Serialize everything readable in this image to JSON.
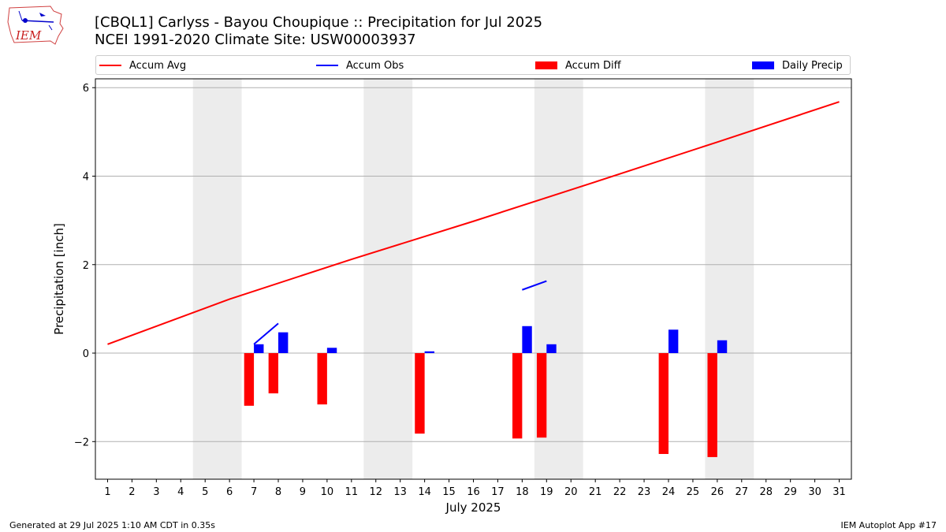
{
  "title_line1": "[CBQL1] Carlyss - Bayou Choupique :: Precipitation for Jul 2025",
  "title_line2": "NCEI 1991-2020 Climate Site: USW00003937",
  "logo_text": "IEM",
  "footer_left": "Generated at 29 Jul 2025 1:10 AM CDT in 0.35s",
  "footer_right": "IEM Autoplot App #17",
  "legend": [
    {
      "label": "Accum Avg",
      "color": "#ff0000",
      "kind": "line"
    },
    {
      "label": "Accum Obs",
      "color": "#0000ff",
      "kind": "line"
    },
    {
      "label": "Accum Diff",
      "color": "#ff0000",
      "kind": "box"
    },
    {
      "label": "Daily Precip",
      "color": "#0000ff",
      "kind": "box"
    }
  ],
  "chart_data": {
    "type": "bar",
    "title": "[CBQL1] Carlyss - Bayou Choupique :: Precipitation for Jul 2025",
    "xlabel": "July 2025",
    "ylabel": "Precipitation [inch]",
    "ylim": [
      -2.85,
      6.2
    ],
    "xlim": [
      0.5,
      31.5
    ],
    "yticks": [
      -2,
      0,
      2,
      4,
      6
    ],
    "ytick_labels": [
      "−2",
      "0",
      "2",
      "4",
      "6"
    ],
    "x": [
      1,
      2,
      3,
      4,
      5,
      6,
      7,
      8,
      9,
      10,
      11,
      12,
      13,
      14,
      15,
      16,
      17,
      18,
      19,
      20,
      21,
      22,
      23,
      24,
      25,
      26,
      27,
      28,
      29,
      30,
      31
    ],
    "weekend_bands": [
      [
        4.5,
        6.5
      ],
      [
        11.5,
        13.5
      ],
      [
        18.5,
        20.5
      ],
      [
        25.5,
        27.5
      ]
    ],
    "grid": "horizontal",
    "series": [
      {
        "name": "Accum Avg",
        "type": "line",
        "color": "#ff0000",
        "x": [
          1,
          6,
          11,
          16,
          21,
          26,
          31
        ],
        "values": [
          0.2,
          1.22,
          2.12,
          2.98,
          3.87,
          4.77,
          5.68
        ]
      },
      {
        "name": "Accum Obs",
        "type": "line",
        "color": "#0000ff",
        "segments": [
          {
            "x": [
              7,
              8
            ],
            "values": [
              0.2,
              0.67
            ]
          },
          {
            "x": [
              18,
              19
            ],
            "values": [
              1.43,
              1.63
            ]
          }
        ]
      },
      {
        "name": "Accum Diff",
        "type": "bar",
        "color": "#ff0000",
        "x": [
          7,
          8,
          10,
          14,
          18,
          19,
          24,
          26
        ],
        "values": [
          -1.19,
          -0.91,
          -1.16,
          -1.82,
          -1.93,
          -1.91,
          -2.28,
          -2.35
        ]
      },
      {
        "name": "Daily Precip",
        "type": "bar",
        "color": "#0000ff",
        "x": [
          7,
          8,
          10,
          14,
          18,
          19,
          24,
          26
        ],
        "values": [
          0.2,
          0.47,
          0.12,
          0.04,
          0.61,
          0.2,
          0.53,
          0.29
        ]
      }
    ]
  }
}
